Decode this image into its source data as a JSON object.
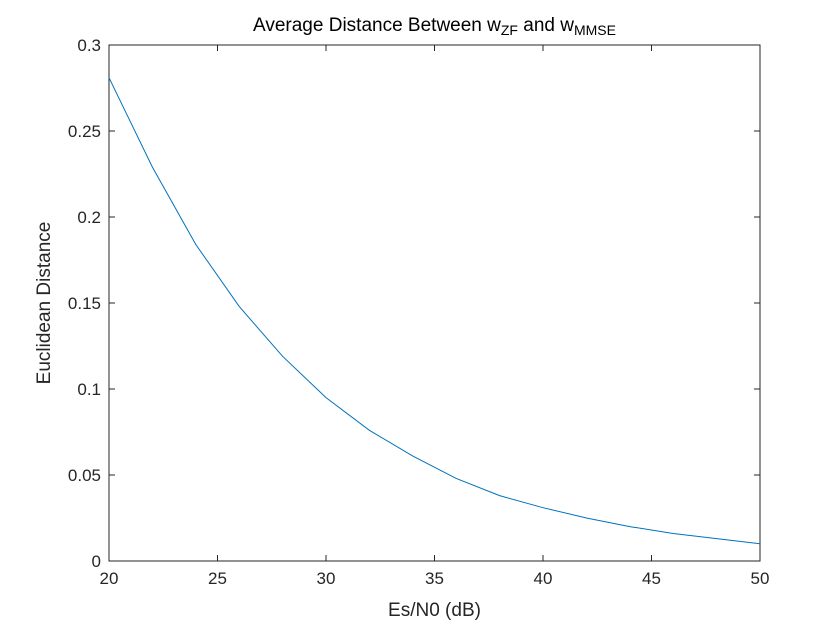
{
  "chart_data": {
    "type": "line",
    "title": {
      "parts": [
        {
          "text": "Average Distance Between w",
          "sub": false
        },
        {
          "text": "ZF",
          "sub": true
        },
        {
          "text": " and w",
          "sub": false
        },
        {
          "text": "MMSE",
          "sub": true
        }
      ]
    },
    "xlabel": "Es/N0 (dB)",
    "ylabel": "Euclidean Distance",
    "xlim": [
      20,
      50
    ],
    "ylim": [
      0,
      0.3
    ],
    "xticks": [
      20,
      25,
      30,
      35,
      40,
      45,
      50
    ],
    "yticks": [
      0,
      0.05,
      0.1,
      0.15,
      0.2,
      0.25,
      0.3
    ],
    "xtick_labels": [
      "20",
      "25",
      "30",
      "35",
      "40",
      "45",
      "50"
    ],
    "ytick_labels": [
      "0",
      "0.05",
      "0.1",
      "0.15",
      "0.2",
      "0.25",
      "0.3"
    ],
    "grid": false,
    "legend": "none",
    "series": [
      {
        "color": "#0072BD",
        "x": [
          20,
          22,
          24,
          26,
          28,
          30,
          32,
          34,
          36,
          38,
          40,
          42,
          44,
          46,
          48,
          50
        ],
        "y": [
          0.281,
          0.229,
          0.184,
          0.148,
          0.119,
          0.095,
          0.076,
          0.061,
          0.048,
          0.038,
          0.031,
          0.025,
          0.02,
          0.016,
          0.013,
          0.01
        ]
      }
    ]
  }
}
